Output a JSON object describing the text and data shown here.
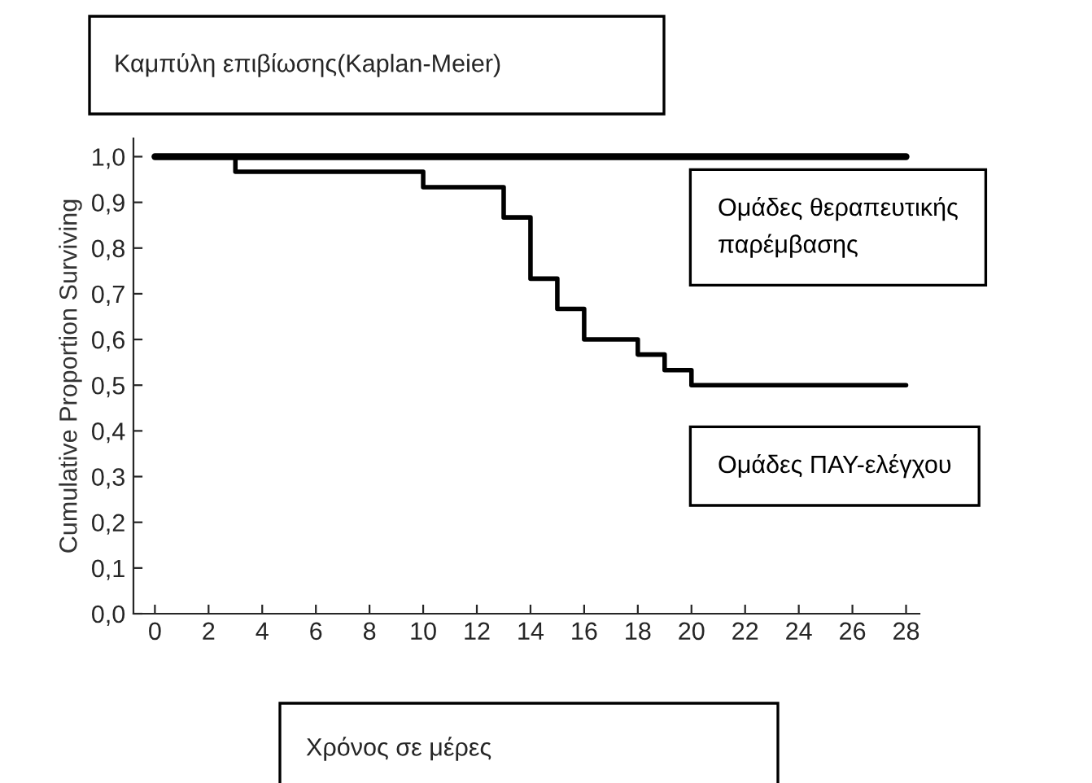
{
  "chart_data": {
    "type": "step",
    "title": "Καμπύλη επιβίωσης(Kaplan-Meier)",
    "xlabel": "Χρόνος σε μέρες",
    "ylabel": "Cumulative Proportion Surviving",
    "series": [
      {
        "name": "Ομάδες θεραπευτικής παρέμβασης",
        "color": "#000000",
        "x": [
          0,
          28
        ],
        "values": [
          1.0,
          1.0
        ]
      },
      {
        "name": "Ομάδες ΠΑΥ-ελέγχου",
        "color": "#000000",
        "x": [
          0,
          3,
          10,
          13,
          14,
          15,
          16,
          18,
          19,
          20,
          28
        ],
        "values": [
          1.0,
          0.967,
          0.933,
          0.867,
          0.733,
          0.667,
          0.6,
          0.567,
          0.533,
          0.5,
          0.5
        ]
      }
    ],
    "xlim": [
      -0.8,
      28.5
    ],
    "xticks": [
      0,
      2,
      4,
      6,
      8,
      10,
      12,
      14,
      16,
      18,
      20,
      22,
      24,
      26,
      28
    ],
    "ylim": [
      0,
      1.04
    ],
    "yticks": [
      {
        "value": 0,
        "label": "0,0"
      },
      {
        "value": 0.1,
        "label": "0,1"
      },
      {
        "value": 0.2,
        "label": "0,2"
      },
      {
        "value": 0.3,
        "label": "0,3"
      },
      {
        "value": 0.4,
        "label": "0,4"
      },
      {
        "value": 0.5,
        "label": "0,5"
      },
      {
        "value": 0.6,
        "label": "0,6"
      },
      {
        "value": 0.7,
        "label": "0,7"
      },
      {
        "value": 0.8,
        "label": "0,8"
      },
      {
        "value": 0.9,
        "label": "0,9"
      },
      {
        "value": 1.0,
        "label": "1,0"
      }
    ],
    "grid": false,
    "legend": false,
    "marker": "none",
    "line_style": "solid"
  }
}
